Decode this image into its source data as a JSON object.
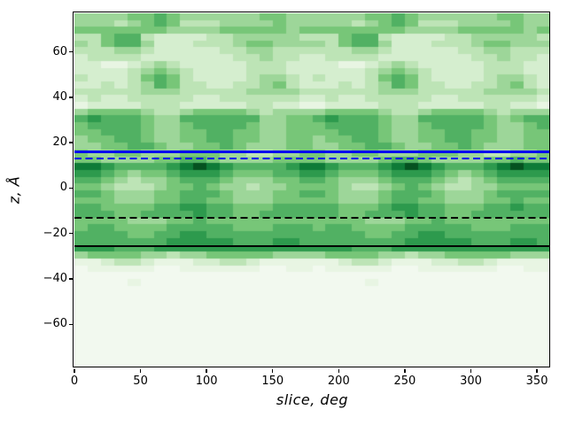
{
  "figure": {
    "background": "#ffffff",
    "spine_color": "#000000"
  },
  "chart_data": {
    "type": "heatmap",
    "title": "",
    "xlabel": "slice, deg",
    "ylabel": "z, Å",
    "xlim": [
      0,
      360
    ],
    "ylim": [
      -79,
      77
    ],
    "grid": false,
    "legend": "none",
    "x_ticks": [
      0,
      50,
      100,
      150,
      200,
      250,
      300,
      350
    ],
    "x_tick_labels": [
      "0",
      "50",
      "100",
      "150",
      "200",
      "250",
      "300",
      "350"
    ],
    "y_ticks": [
      60,
      40,
      20,
      0,
      -20,
      -40,
      -60
    ],
    "y_tick_labels": [
      "60",
      "40",
      "20",
      "0",
      "−20",
      "−40",
      "−60"
    ],
    "colormap": "Greens",
    "palette": [
      "#f2f9ef",
      "#e8f5e3",
      "#d5eecf",
      "#bde4b6",
      "#9dd699",
      "#77c678",
      "#51b163",
      "#2d9a4d",
      "#0e7b37",
      "#055220"
    ],
    "n_cols": 36,
    "n_rows": 52,
    "col_width_deg": 10,
    "row_height_angstrom": 3,
    "values_scale": "digit 0 (lightest) … 9 (darkest), one char per 10° column, rows top (z=77) to bottom (z=-79)",
    "rows": [
      "444455654444445544444455654444445544",
      "444345653334444544444345653334444544",
      "555555544445555545555555544445555545",
      "335663222233444443335663222233444443",
      "435664222333455444435664222333455444",
      "333443222223344333333443222223344333",
      "233332222222334332233332222222334332",
      "221123432222233322221123432222233322",
      "222234543222233322222234543222233322",
      "322235653222234432322235653222234432",
      "223234653322334532223234653322334532",
      "333334443333344443333334443333344443",
      "232233333223333332232233333223333332",
      "122223332222233221122223332222233221",
      "455554334555543444455554334555543444",
      "676665446666664455676665446666654566",
      "566665445666654455566665445666654456",
      "556665445566554455556665445566554455",
      "455665445566554455455665445566554455",
      "445566544556544455445566544556544455",
      "544554445554433445544554445554433445",
      "554444556654444555544445665444455655",
      "887666678987666678876667898766678988",
      "776545567776555667765556777654567777",
      "665434456665444556654445666543456666",
      "554333455654434455554334565433445555",
      "665444556665444556654445666544456666",
      "555444556655444555554445665544455655",
      "665555667766555666665556776655566766",
      "666556666766556666665566676655666666",
      "555544455655555555555544455655555555",
      "566555566666555666566555566666555666",
      "666655667766666666666655667766666666",
      "666666677777666776666666677777666776",
      "777666777777777777777666777777777777",
      "455554434455555444455554434455555444",
      "112332111223321111112332111223321111",
      "011111001111110011011111001111110011",
      "000000000000000000000000000000000000",
      "000010000000000000000010000000000000",
      "000000000000000000000000000000000000",
      "000000000000000000000000000000000000",
      "000000000000000000000000000000000000",
      "000000000000000000000000000000000000",
      "000000000000000000000000000000000000",
      "000000000000000000000000000000000000",
      "000000000000000000000000000000000000",
      "000000000000000000000000000000000000",
      "000000000000000000000000000000000000",
      "000000000000000000000000000000000000",
      "000000000000000000000000000000000000",
      "000000000000000000000000000000000000"
    ],
    "hlines": [
      {
        "name": "hline-blue-solid",
        "z": 16.0,
        "color": "#0000ee",
        "style": "solid",
        "width": 2.5
      },
      {
        "name": "hline-blue-dashed",
        "z": 13.0,
        "color": "#0000ee",
        "style": "dashed",
        "width": 2.5
      },
      {
        "name": "hline-black-dashed",
        "z": -13.0,
        "color": "#000000",
        "style": "dashed",
        "width": 1.8
      },
      {
        "name": "hline-black-solid",
        "z": -25.5,
        "color": "#000000",
        "style": "solid",
        "width": 1.8
      }
    ]
  }
}
